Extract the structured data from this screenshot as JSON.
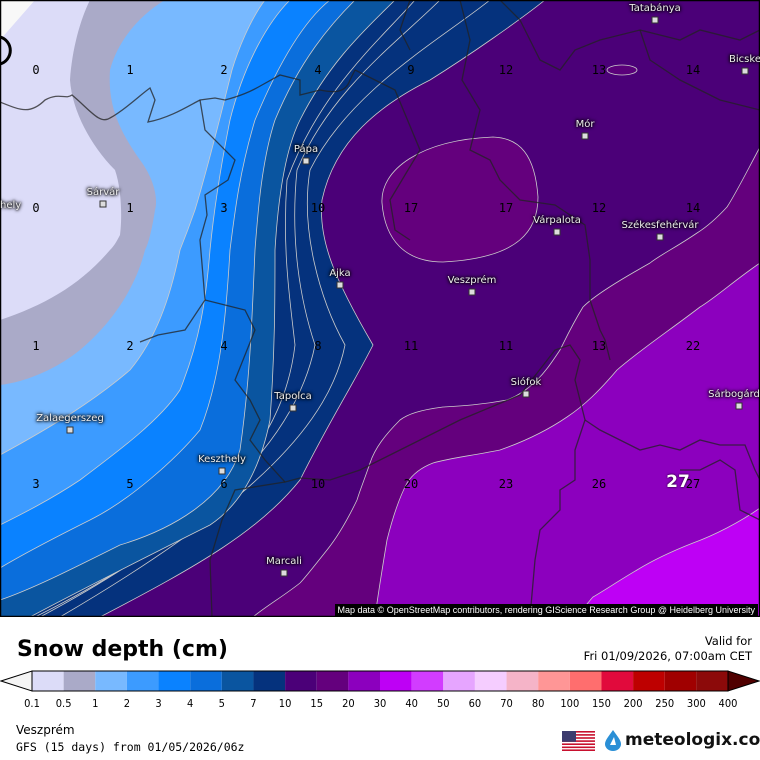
{
  "title": "Snow depth (cm)",
  "valid_label": "Valid for",
  "valid_time": "Fri 01/09/2026, 07:00am CET",
  "location": "Veszprém",
  "model_run": "GFS (15 days) from  01/05/2026/06z",
  "brand": "meteologix.com",
  "map_credit": "Map data © OpenStreetMap contributors, rendering GIScience Research Group @ Heidelberg University",
  "icons": {
    "flag": "us-flag-icon",
    "logo": "meteologix-drop-icon"
  },
  "legend": {
    "ticks": [
      "0.1",
      "0.5",
      "1",
      "2",
      "3",
      "4",
      "5",
      "7",
      "10",
      "15",
      "20",
      "30",
      "40",
      "50",
      "60",
      "70",
      "80",
      "100",
      "150",
      "200",
      "250",
      "300",
      "400"
    ],
    "colors": [
      "#dcdcf8",
      "#aaaac8",
      "#78b9ff",
      "#3c9bff",
      "#0a82ff",
      "#0a6edc",
      "#0a55a0",
      "#05327d",
      "#4b0078",
      "#64007d",
      "#8c00be",
      "#be00f5",
      "#d23cff",
      "#e6a5ff",
      "#f5cdff",
      "#f5b4c8",
      "#ff9696",
      "#ff6e6e",
      "#e10a3c",
      "#be0000",
      "#a00000",
      "#8c0a0a"
    ],
    "under_color": "#f5f5f5",
    "over_color": "#500000"
  },
  "cities": [
    "Tatabánya",
    "Bicske",
    "Mór",
    "Pápa",
    "Sárvár",
    "hely",
    "Várpalota",
    "Székesfehérvár",
    "Ajka",
    "Veszprém",
    "Zalaegerszeg",
    "Tapolca",
    "Siófok",
    "Sárbogárd",
    "Keszthely",
    "Marcali"
  ],
  "grid_values": [
    [
      "0",
      "1",
      "2",
      "4",
      "9",
      "12",
      "13",
      "14"
    ],
    [
      "0",
      "1",
      "3",
      "10",
      "17",
      "17",
      "12",
      "14"
    ],
    [
      "1",
      "2",
      "4",
      "8",
      "11",
      "11",
      "13",
      "22"
    ],
    [
      "3",
      "5",
      "6",
      "10",
      "20",
      "23",
      "26",
      "27"
    ]
  ],
  "highlight_value": "27"
}
